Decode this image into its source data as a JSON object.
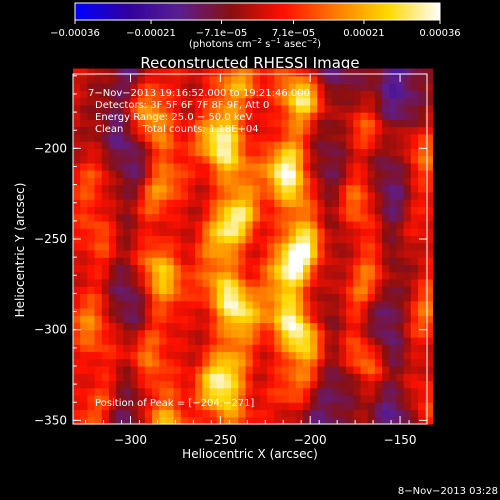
{
  "chart_data": {
    "type": "heatmap",
    "title": "Reconstructed RHESSI Image",
    "xlabel": "Heliocentric X (arcsec)",
    "ylabel": "Heliocentric Y (arcsec)",
    "xlim": [
      -332,
      -135
    ],
    "ylim": [
      -352,
      -159
    ],
    "x_ticks": [
      -300,
      -250,
      -200,
      -150
    ],
    "y_ticks": [
      -200,
      -250,
      -300,
      -350
    ],
    "x_tick_labels": [
      "−300",
      "−250",
      "−200",
      "−150"
    ],
    "y_tick_labels": [
      "−200",
      "−250",
      "−300",
      "−350"
    ],
    "colorbar": {
      "range": [
        -0.00036,
        0.00036
      ],
      "tick_values": [
        -0.00036,
        -0.00021,
        -7.1e-05,
        7.1e-05,
        0.00021,
        0.00036
      ],
      "tick_labels": [
        "−0.00036",
        "−0.00021",
        "−7.1e−05",
        "7.1e−05",
        "0.00021",
        "0.00036"
      ],
      "unit_base": "(photons cm",
      "unit_exp1": "−2",
      "unit_mid": " s",
      "unit_exp2": "−1",
      "unit_mid2": " asec",
      "unit_exp3": "−2",
      "unit_end": ")",
      "colormap": [
        "#0000ff",
        "#3000a0",
        "#5a1e91",
        "#8a0f0f",
        "#ff1000",
        "#ff7a00",
        "#ffd800",
        "#ffffff"
      ]
    },
    "annotations": {
      "time_range": "7−Nov−2013 19:16:52.000 to 19:21:46.000",
      "detectors": "Detectors: 3F 5F 6F 7F 8F 9F, Att 0",
      "energy_range": "Energy Range: 25.0 − 50.0 keV",
      "clean_counts": "Clean      Total counts: 1.18E+04",
      "peak_position": "Position of Peak = [−204,−271]"
    },
    "ridges": [
      {
        "x": -318,
        "y_from": -352,
        "y_to": -225,
        "amp": 0.00016
      },
      {
        "x": -287,
        "y_from": -350,
        "y_to": -165,
        "amp": 0.00026
      },
      {
        "x": -245,
        "y_from": -345,
        "y_to": -172,
        "amp": 0.00034
      },
      {
        "x": -208,
        "y_from": -320,
        "y_to": -175,
        "amp": 0.00036
      },
      {
        "x": -170,
        "y_from": -315,
        "y_to": -195,
        "amp": 0.00022
      },
      {
        "x": -140,
        "y_from": -350,
        "y_to": -200,
        "amp": 0.00014
      }
    ],
    "troughs": [
      {
        "x": -300,
        "amp": -0.00015
      },
      {
        "x": -190,
        "amp": -0.00012
      },
      {
        "x": -155,
        "amp": -0.00016
      }
    ],
    "peak": {
      "x": -204,
      "y": -271,
      "value": 0.00036
    }
  },
  "footer": {
    "date_stamp": "8−Nov−2013 03:28"
  }
}
